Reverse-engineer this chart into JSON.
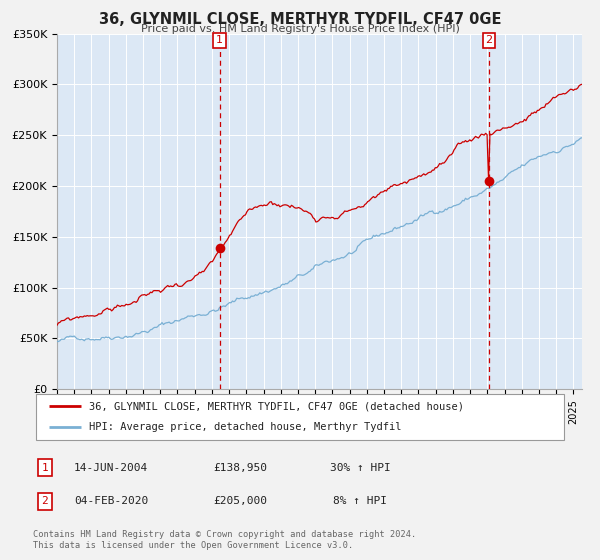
{
  "title": "36, GLYNMIL CLOSE, MERTHYR TYDFIL, CF47 0GE",
  "subtitle": "Price paid vs. HM Land Registry's House Price Index (HPI)",
  "legend_line1": "36, GLYNMIL CLOSE, MERTHYR TYDFIL, CF47 0GE (detached house)",
  "legend_line2": "HPI: Average price, detached house, Merthyr Tydfil",
  "sale1_label": "1",
  "sale1_date": "14-JUN-2004",
  "sale1_price": "£138,950",
  "sale1_hpi": "30% ↑ HPI",
  "sale2_label": "2",
  "sale2_date": "04-FEB-2020",
  "sale2_price": "£205,000",
  "sale2_hpi": "8% ↑ HPI",
  "footer1": "Contains HM Land Registry data © Crown copyright and database right 2024.",
  "footer2": "This data is licensed under the Open Government Licence v3.0.",
  "red_color": "#cc0000",
  "blue_color": "#7ab0d4",
  "bg_fill_color": "#dce8f5",
  "plot_bg_color": "#dce8f5",
  "sale1_x_year": 2004.45,
  "sale1_y": 138950,
  "sale2_x_year": 2020.09,
  "sale2_y": 205000,
  "ylim": [
    0,
    350000
  ],
  "xlim_start": 1995,
  "xlim_end": 2025.5
}
